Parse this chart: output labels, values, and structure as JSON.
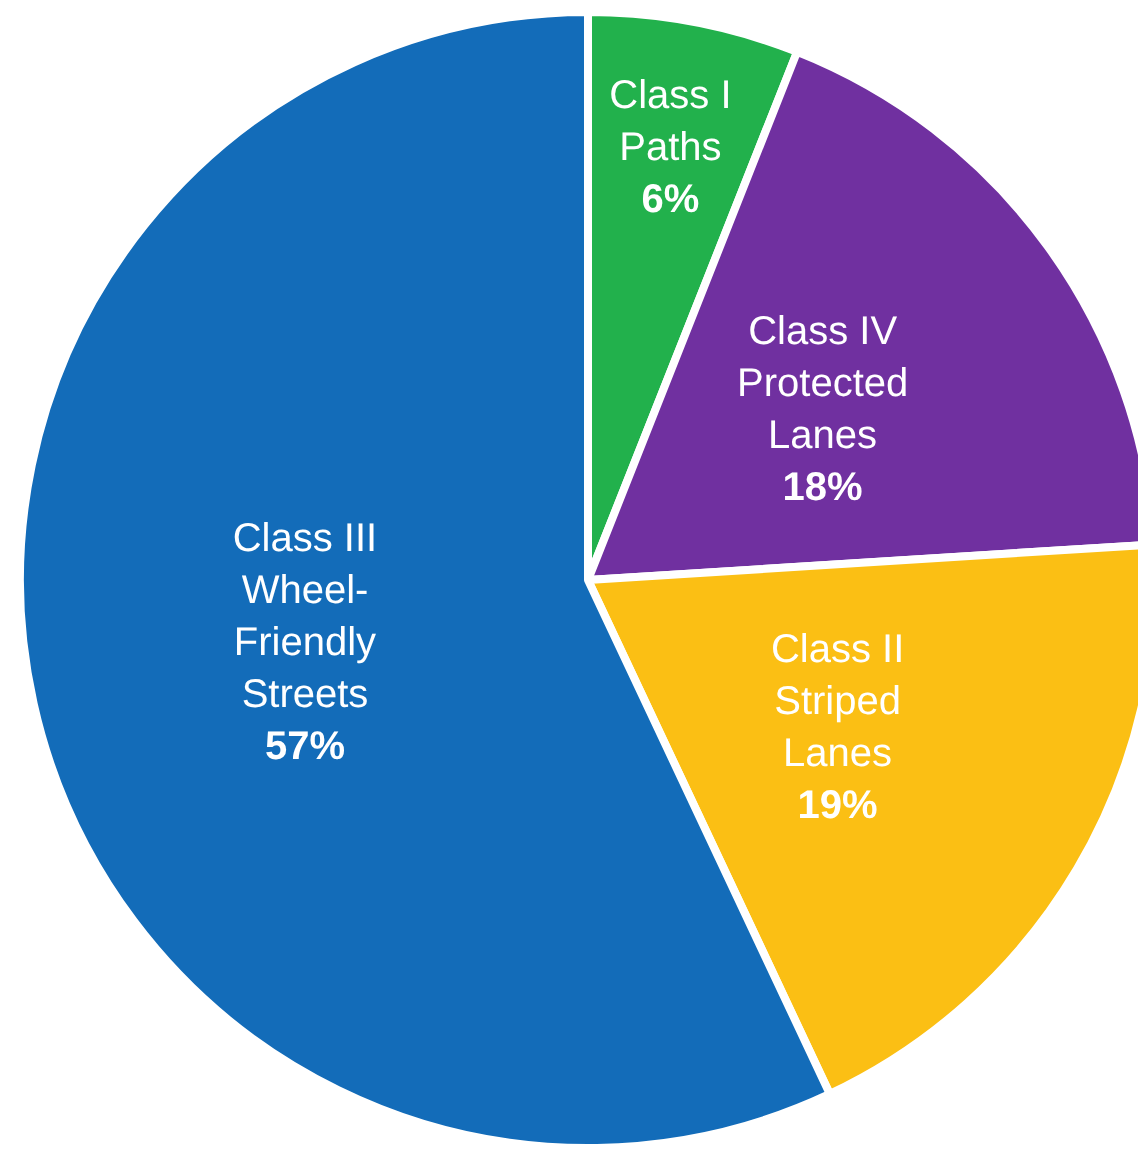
{
  "chart_data": {
    "type": "pie",
    "categories": [
      "Class I\nPaths",
      "Class IV\nProtected\nLanes",
      "Class II\nStriped\nLanes",
      "Class III\nWheel-\nFriendly\nStreets"
    ],
    "values": [
      6,
      18,
      19,
      57
    ],
    "value_labels": [
      "6%",
      "18%",
      "19%",
      "57%"
    ],
    "colors": [
      "#22b14c",
      "#7030a0",
      "#fbbf14",
      "#136cb9"
    ],
    "legend": false
  }
}
